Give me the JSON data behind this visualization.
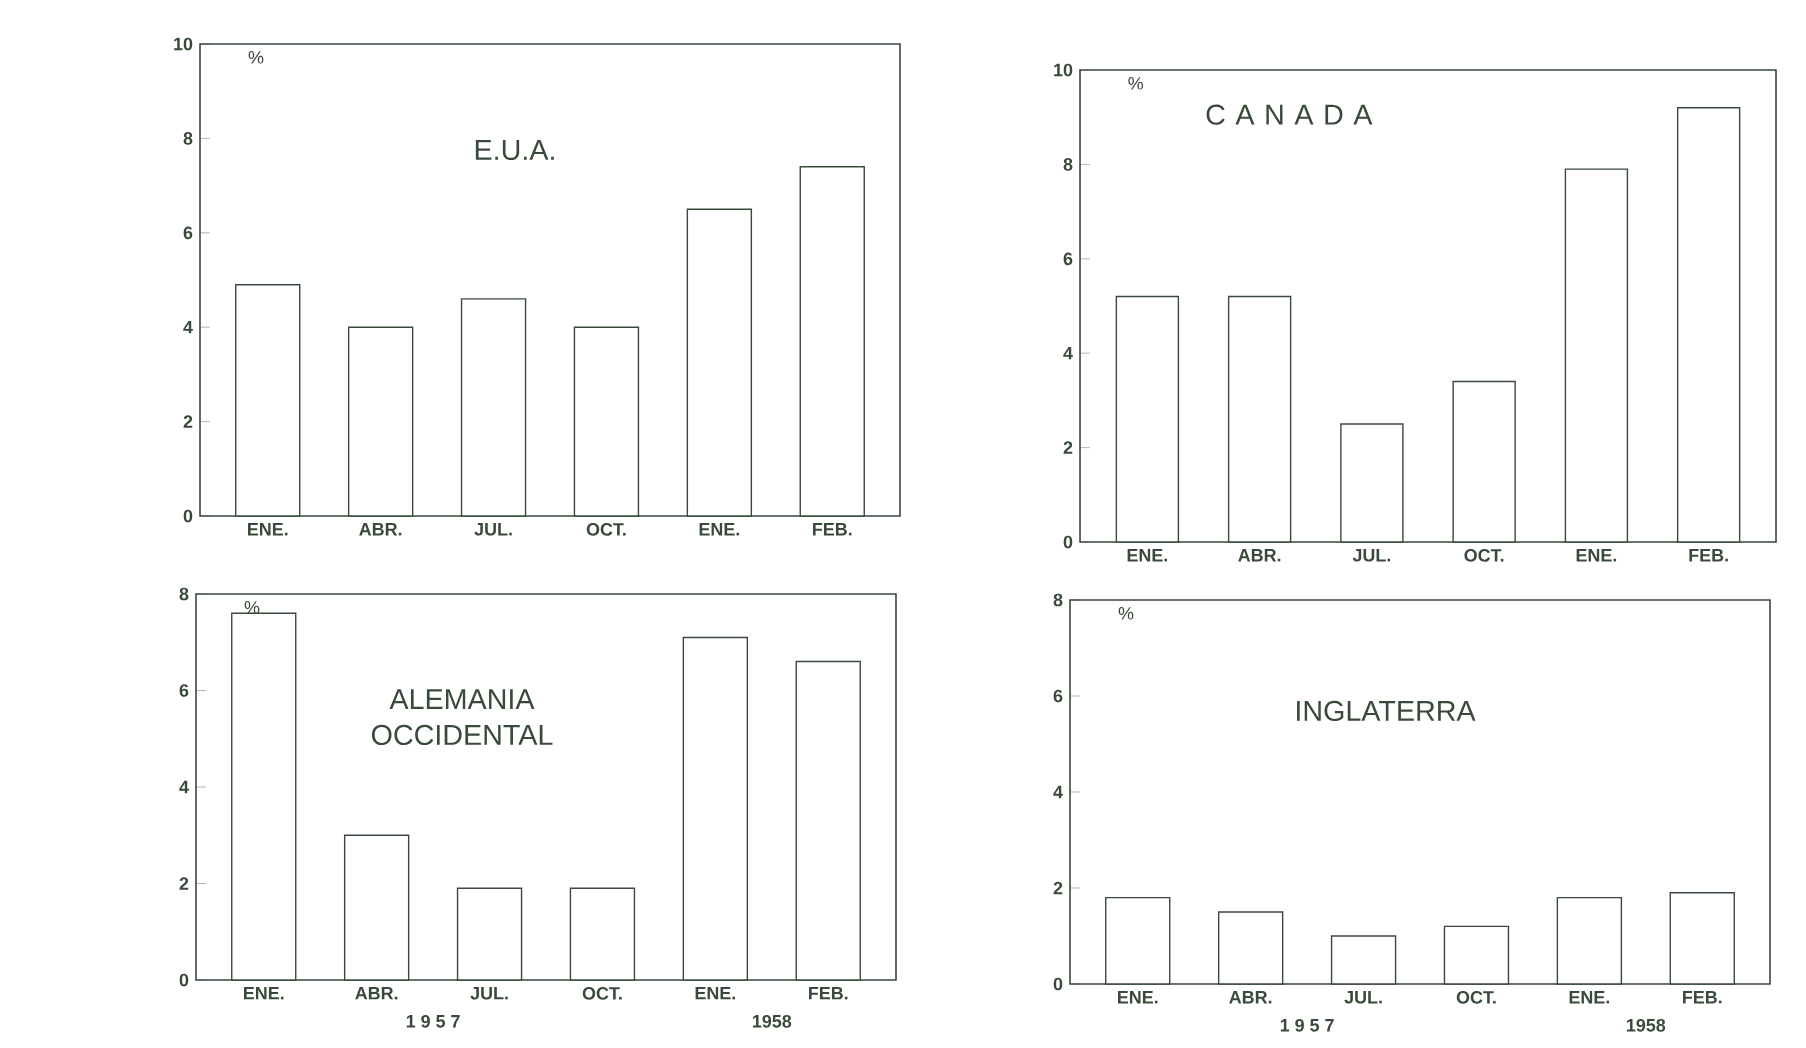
{
  "chart_data": [
    {
      "type": "bar",
      "title": "E.U.A.",
      "ylabel": "%",
      "categories": [
        "ENE.",
        "ABR.",
        "JUL.",
        "OCT.",
        "ENE.",
        "FEB."
      ],
      "color": "#ffffff",
      "values": [
        4.9,
        4.0,
        4.6,
        4.0,
        6.5,
        7.4
      ],
      "ylim": [
        0,
        10
      ],
      "yticks": [
        0,
        2,
        4,
        6,
        8,
        10
      ]
    },
    {
      "type": "bar",
      "title": "C A N A D A",
      "ylabel": "%",
      "categories": [
        "ENE.",
        "ABR.",
        "JUL.",
        "OCT.",
        "ENE.",
        "FEB."
      ],
      "color": "#ffffff",
      "values": [
        5.2,
        5.2,
        2.5,
        3.4,
        7.9,
        9.2
      ],
      "ylim": [
        0,
        10
      ],
      "yticks": [
        0,
        2,
        4,
        6,
        8,
        10
      ]
    },
    {
      "type": "bar",
      "title": "ALEMANIA OCCIDENTAL",
      "ylabel": "%",
      "categories": [
        "ENE.",
        "ABR.",
        "JUL.",
        "OCT.",
        "ENE.",
        "FEB."
      ],
      "color": "#ffffff",
      "values": [
        7.6,
        3.0,
        1.9,
        1.9,
        7.1,
        6.6
      ],
      "ylim": [
        0,
        8
      ],
      "yticks": [
        0,
        2,
        4,
        6,
        8
      ],
      "annotations": [
        "1  9  5  7",
        "1958"
      ]
    },
    {
      "type": "bar",
      "title": "INGLATERRA",
      "ylabel": "%",
      "categories": [
        "ENE.",
        "ABR.",
        "JUL.",
        "OCT.",
        "ENE.",
        "FEB."
      ],
      "color": "#ffffff",
      "values": [
        1.8,
        1.5,
        1.0,
        1.2,
        1.8,
        1.9
      ],
      "ylim": [
        0,
        8
      ],
      "yticks": [
        0,
        2,
        4,
        6,
        8
      ],
      "annotations": [
        "1  9  5  7",
        "1958"
      ]
    }
  ]
}
